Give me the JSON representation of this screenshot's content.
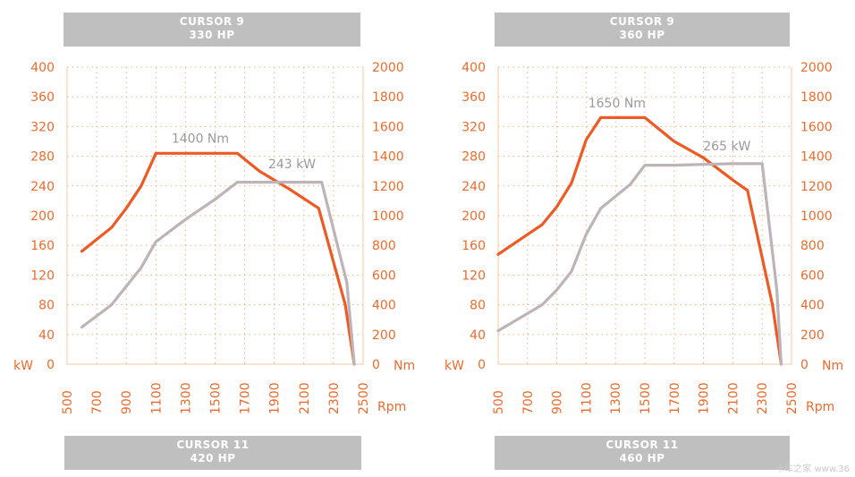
{
  "panels": [
    {
      "top": {
        "line1": "CURSOR 9",
        "line2": "330 HP"
      },
      "bottom": {
        "line1": "CURSOR 11",
        "line2": "420 HP"
      }
    },
    {
      "top": {
        "line1": "CURSOR 9",
        "line2": "360 HP"
      },
      "bottom": {
        "line1": "CURSOR 11",
        "line2": "460 HP"
      }
    }
  ],
  "watermark": "卡车之家 www.36",
  "chart_data": [
    {
      "type": "line",
      "x_ticks": [
        500,
        700,
        900,
        1100,
        1300,
        1500,
        1700,
        1900,
        2100,
        2300,
        2500
      ],
      "xlabel": "Rpm",
      "xlim": [
        500,
        2500
      ],
      "y_left_ticks": [
        0,
        40,
        80,
        120,
        160,
        200,
        240,
        280,
        320,
        360,
        400
      ],
      "y_left_label": "kW",
      "y_left_lim": [
        0,
        400
      ],
      "y_right_ticks": [
        0,
        200,
        400,
        600,
        800,
        1000,
        1200,
        1400,
        1600,
        1800,
        2000
      ],
      "y_right_label": "Nm",
      "y_right_lim": [
        0,
        2000
      ],
      "grid": true,
      "series": [
        {
          "axis": "right",
          "color": "#ee5a24",
          "x": [
            600,
            800,
            900,
            1000,
            1100,
            1300,
            1500,
            1650,
            1800,
            2000,
            2200,
            2380,
            2440
          ],
          "y": [
            760,
            920,
            1050,
            1200,
            1420,
            1420,
            1420,
            1420,
            1300,
            1180,
            1050,
            400,
            0
          ]
        },
        {
          "axis": "left",
          "color": "#bdb3b8",
          "x": [
            600,
            800,
            900,
            1000,
            1100,
            1300,
            1500,
            1650,
            1800,
            2000,
            2220,
            2390,
            2440
          ],
          "y": [
            50,
            80,
            105,
            130,
            165,
            195,
            222,
            245,
            245,
            245,
            245,
            110,
            0
          ]
        }
      ],
      "annotations": [
        {
          "text": "1400 Nm",
          "x": 1400,
          "y": 1490,
          "axis": "right"
        },
        {
          "text": "243 kW",
          "x": 2020,
          "y": 264,
          "axis": "left"
        }
      ]
    },
    {
      "type": "line",
      "x_ticks": [
        500,
        700,
        900,
        1100,
        1300,
        1500,
        1700,
        1900,
        2100,
        2300,
        2500
      ],
      "xlabel": "Rpm",
      "xlim": [
        500,
        2500
      ],
      "y_left_ticks": [
        0,
        40,
        80,
        120,
        160,
        200,
        240,
        280,
        320,
        360,
        400
      ],
      "y_left_label": "kW",
      "y_left_lim": [
        0,
        400
      ],
      "y_right_ticks": [
        0,
        200,
        400,
        600,
        800,
        1000,
        1200,
        1400,
        1600,
        1800,
        2000
      ],
      "y_right_label": "Nm",
      "y_right_lim": [
        0,
        2000
      ],
      "grid": true,
      "series": [
        {
          "axis": "right",
          "color": "#ee5a24",
          "x": [
            500,
            800,
            900,
            1000,
            1100,
            1200,
            1500,
            1700,
            1900,
            2100,
            2200,
            2370,
            2430
          ],
          "y": [
            740,
            940,
            1060,
            1220,
            1510,
            1660,
            1660,
            1500,
            1390,
            1240,
            1170,
            400,
            0
          ]
        },
        {
          "axis": "left",
          "color": "#bdb3b8",
          "x": [
            500,
            800,
            900,
            1000,
            1100,
            1200,
            1400,
            1500,
            1700,
            1900,
            2100,
            2300,
            2400,
            2430
          ],
          "y": [
            45,
            80,
            100,
            125,
            175,
            210,
            242,
            268,
            268,
            269,
            270,
            270,
            100,
            0
          ]
        }
      ],
      "annotations": [
        {
          "text": "1650 Nm",
          "x": 1310,
          "y": 1730,
          "axis": "right"
        },
        {
          "text": "265 kW",
          "x": 2060,
          "y": 288,
          "axis": "left"
        }
      ]
    }
  ]
}
